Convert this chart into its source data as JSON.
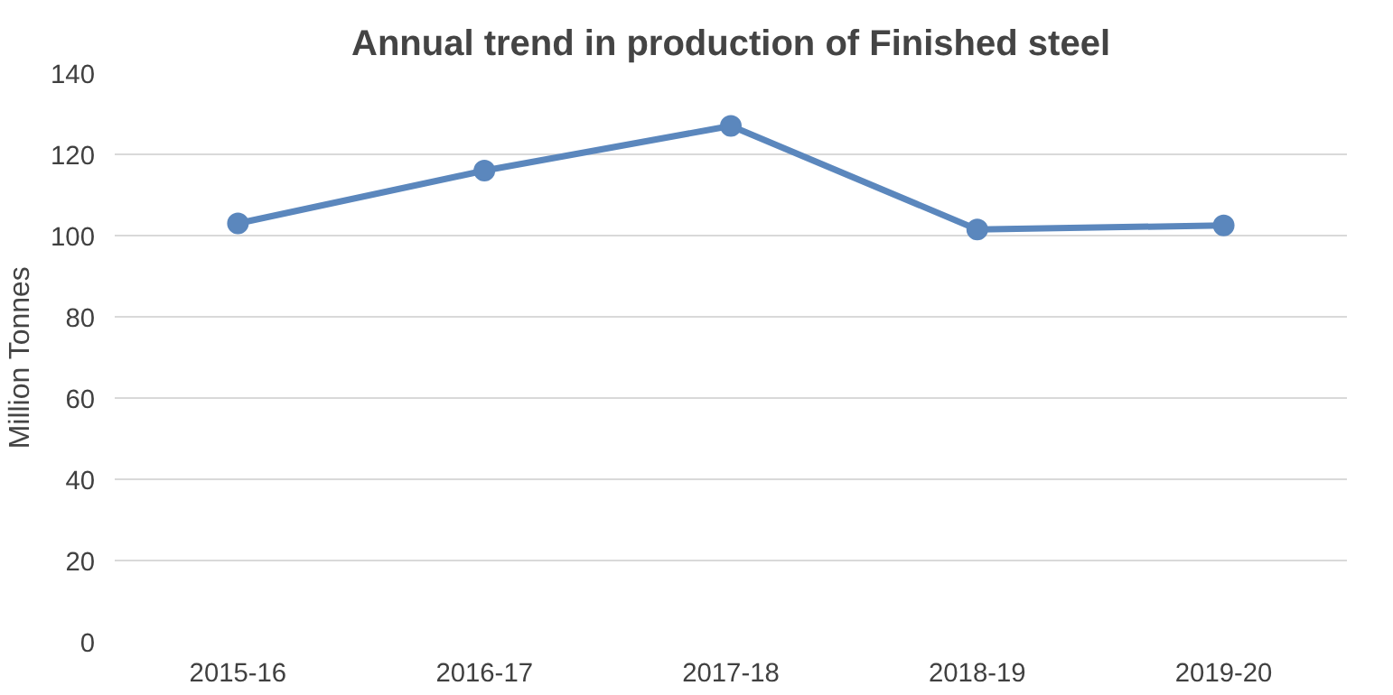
{
  "chart_data": {
    "type": "line",
    "title": "Annual trend in production of Finished steel",
    "ylabel": "Million Tonnes",
    "categories": [
      "2015-16",
      "2016-17",
      "2017-18",
      "2018-19",
      "2019-20"
    ],
    "series": [
      {
        "color": "#5b87bd",
        "values": [
          103,
          116,
          127,
          101.5,
          102.5
        ]
      }
    ],
    "ylim": [
      0,
      140
    ],
    "yticks": [
      0,
      20,
      40,
      60,
      80,
      100,
      120,
      140
    ],
    "grid": "y",
    "marker": "circle",
    "line_style": "solid"
  }
}
